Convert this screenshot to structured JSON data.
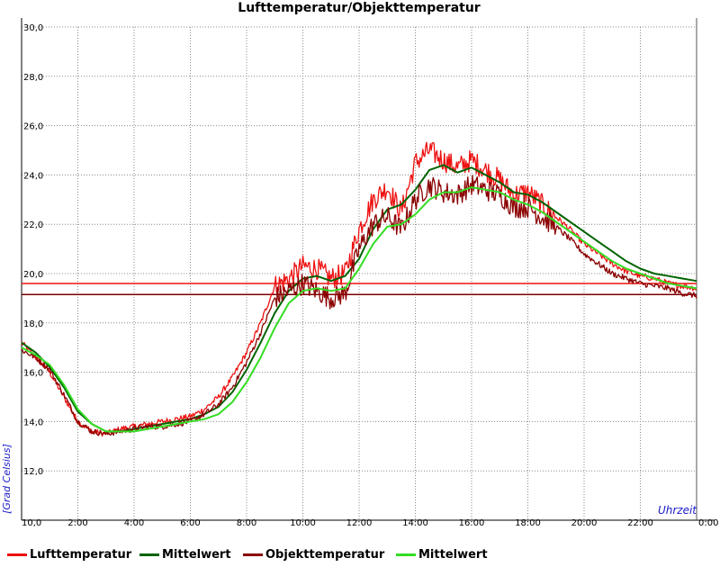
{
  "chart_data": {
    "type": "line",
    "title": "Lufttemperatur/Objekttemperatur",
    "ylabel": "[Grad Celsius]",
    "xlabel": "Uhrzeit",
    "ylim": [
      10,
      30
    ],
    "xlim": [
      0,
      24
    ],
    "y_ticks": [
      "10,0",
      "12,0",
      "14,0",
      "16,0",
      "18,0",
      "20,0",
      "22,0",
      "24,0",
      "26,0",
      "28,0",
      "30,0"
    ],
    "x_ticks": [
      "10,0",
      "2:00",
      "4:00",
      "6:00",
      "8:00",
      "10:00",
      "12:00",
      "14:00",
      "16:00",
      "18:00",
      "20:00",
      "22:00",
      "0:00"
    ],
    "grid": true,
    "legend_position": "bottom",
    "reference_lines": [
      {
        "value": 19.6,
        "color": "#ee1111"
      },
      {
        "value": 19.15,
        "color": "#7a0000"
      }
    ],
    "series": [
      {
        "name": "Lufttemperatur",
        "color": "#ee1111",
        "noisy": true,
        "x": [
          0,
          0.5,
          1,
          1.5,
          2,
          2.5,
          3,
          3.5,
          4,
          4.5,
          5,
          5.5,
          6,
          6.5,
          7,
          7.5,
          8,
          8.5,
          9,
          9.5,
          10,
          10.5,
          11,
          11.5,
          12,
          12.5,
          13,
          13.5,
          14,
          14.5,
          15,
          15.5,
          16,
          16.5,
          17,
          17.5,
          18,
          18.5,
          19,
          19.5,
          20,
          20.5,
          21,
          21.5,
          22,
          22.5,
          23,
          23.5,
          24
        ],
        "values": [
          17.2,
          16.6,
          16.0,
          15.0,
          14.0,
          13.6,
          13.5,
          13.7,
          13.8,
          13.9,
          14.0,
          14.1,
          14.2,
          14.5,
          15.0,
          15.8,
          16.8,
          18.0,
          19.5,
          19.8,
          20.3,
          20.2,
          19.8,
          20.0,
          21.8,
          23.0,
          23.5,
          22.5,
          24.5,
          25.0,
          24.6,
          24.3,
          24.6,
          24.2,
          23.8,
          23.2,
          23.3,
          22.8,
          22.3,
          21.8,
          21.2,
          20.8,
          20.4,
          20.1,
          19.9,
          19.8,
          19.6,
          19.5,
          19.4
        ]
      },
      {
        "name": "Mittelwert",
        "color": "#006400",
        "noisy": false,
        "x": [
          0,
          0.5,
          1,
          1.5,
          2,
          2.5,
          3,
          3.5,
          4,
          4.5,
          5,
          5.5,
          6,
          6.5,
          7,
          7.5,
          8,
          8.5,
          9,
          9.5,
          10,
          10.5,
          11,
          11.5,
          12,
          12.5,
          13,
          13.5,
          14,
          14.5,
          15,
          15.5,
          16,
          16.5,
          17,
          17.5,
          18,
          18.5,
          19,
          19.5,
          20,
          20.5,
          21,
          21.5,
          22,
          22.5,
          23,
          23.5,
          24
        ],
        "values": [
          17.2,
          16.8,
          16.2,
          15.4,
          14.4,
          13.9,
          13.6,
          13.6,
          13.7,
          13.8,
          13.9,
          14.0,
          14.1,
          14.3,
          14.6,
          15.2,
          16.1,
          17.2,
          18.4,
          19.3,
          19.8,
          19.9,
          19.7,
          19.9,
          20.6,
          21.8,
          22.6,
          22.8,
          23.4,
          24.2,
          24.4,
          24.1,
          24.3,
          24.0,
          23.7,
          23.3,
          23.2,
          22.9,
          22.5,
          22.1,
          21.7,
          21.3,
          20.9,
          20.5,
          20.2,
          20.0,
          19.9,
          19.8,
          19.7
        ]
      },
      {
        "name": "Objekttemperatur",
        "color": "#8b0000",
        "noisy": true,
        "x": [
          0,
          0.5,
          1,
          1.5,
          2,
          2.5,
          3,
          3.5,
          4,
          4.5,
          5,
          5.5,
          6,
          6.5,
          7,
          7.5,
          8,
          8.5,
          9,
          9.5,
          10,
          10.5,
          11,
          11.5,
          12,
          12.5,
          13,
          13.5,
          14,
          14.5,
          15,
          15.5,
          16,
          16.5,
          17,
          17.5,
          18,
          18.5,
          19,
          19.5,
          20,
          20.5,
          21,
          21.5,
          22,
          22.5,
          23,
          23.5,
          24
        ],
        "values": [
          16.9,
          16.6,
          16.1,
          15.1,
          14.0,
          13.6,
          13.5,
          13.6,
          13.7,
          13.8,
          13.8,
          13.9,
          14.0,
          14.3,
          14.7,
          15.4,
          16.4,
          17.6,
          19.0,
          19.3,
          19.6,
          19.3,
          19.0,
          19.2,
          21.0,
          22.0,
          22.3,
          21.8,
          23.0,
          23.6,
          23.3,
          23.2,
          23.6,
          23.4,
          23.2,
          22.7,
          22.7,
          22.3,
          21.9,
          21.4,
          20.8,
          20.4,
          20.0,
          19.8,
          19.6,
          19.5,
          19.4,
          19.2,
          19.1
        ]
      },
      {
        "name": "Mittelwert",
        "color": "#33dd22",
        "noisy": false,
        "x": [
          0,
          0.5,
          1,
          1.5,
          2,
          2.5,
          3,
          3.5,
          4,
          4.5,
          5,
          5.5,
          6,
          6.5,
          7,
          7.5,
          8,
          8.5,
          9,
          9.5,
          10,
          10.5,
          11,
          11.5,
          12,
          12.5,
          13,
          13.5,
          14,
          14.5,
          15,
          15.5,
          16,
          16.5,
          17,
          17.5,
          18,
          18.5,
          19,
          19.5,
          20,
          20.5,
          21,
          21.5,
          22,
          22.5,
          23,
          23.5,
          24
        ],
        "values": [
          17.0,
          16.7,
          16.3,
          15.5,
          14.5,
          13.9,
          13.6,
          13.6,
          13.6,
          13.7,
          13.8,
          13.9,
          14.0,
          14.1,
          14.3,
          14.8,
          15.6,
          16.6,
          17.8,
          18.8,
          19.3,
          19.4,
          19.3,
          19.4,
          20.2,
          21.2,
          21.9,
          22.0,
          22.4,
          23.0,
          23.3,
          23.3,
          23.5,
          23.4,
          23.3,
          23.0,
          22.8,
          22.5,
          22.1,
          21.7,
          21.3,
          20.9,
          20.5,
          20.2,
          20.0,
          19.8,
          19.6,
          19.5,
          19.4
        ]
      }
    ]
  }
}
